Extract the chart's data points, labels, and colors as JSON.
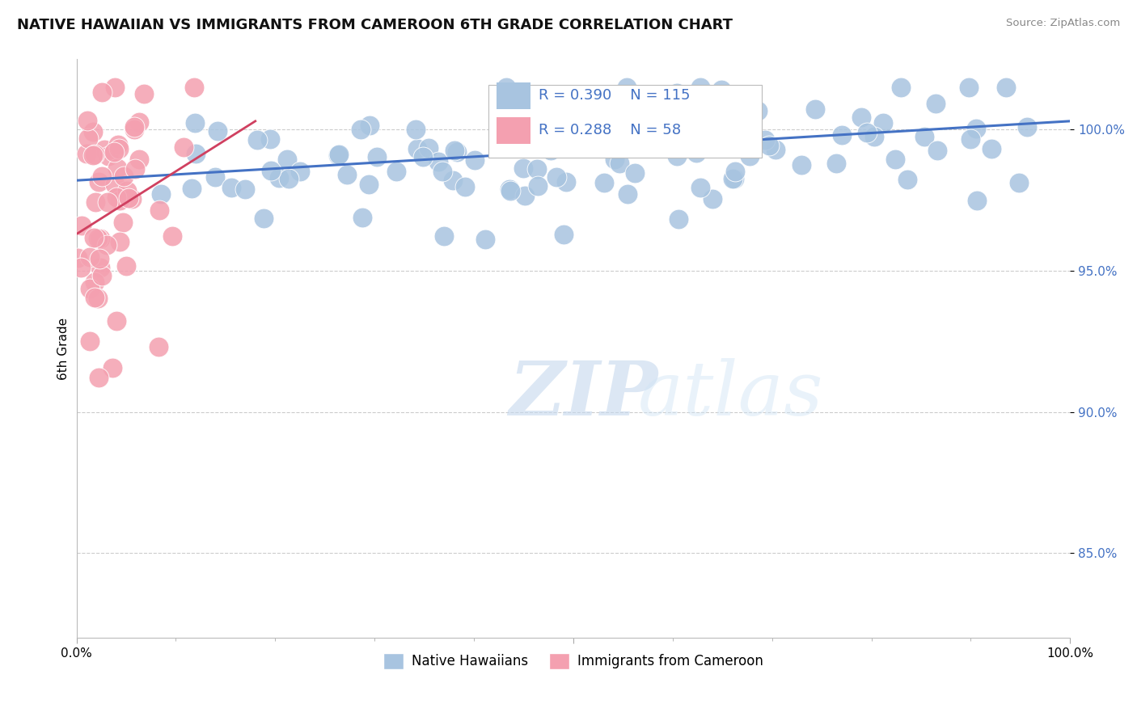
{
  "title": "NATIVE HAWAIIAN VS IMMIGRANTS FROM CAMEROON 6TH GRADE CORRELATION CHART",
  "source": "Source: ZipAtlas.com",
  "ylabel": "6th Grade",
  "xlim": [
    0.0,
    1.0
  ],
  "ylim": [
    0.82,
    1.025
  ],
  "x_tick_labels": [
    "0.0%",
    "100.0%"
  ],
  "y_tick_vals": [
    0.85,
    0.9,
    0.95,
    1.0
  ],
  "y_tick_labels": [
    "85.0%",
    "90.0%",
    "95.0%",
    "100.0%"
  ],
  "legend_entries": [
    "Native Hawaiians",
    "Immigrants from Cameroon"
  ],
  "R_blue": 0.39,
  "N_blue": 115,
  "R_pink": 0.288,
  "N_pink": 58,
  "blue_color": "#a8c4e0",
  "pink_color": "#f4a0b0",
  "blue_line_color": "#4472c4",
  "pink_line_color": "#d04060",
  "legend_text_color": "#4472c4",
  "watermark_zip": "ZIP",
  "watermark_atlas": "atlas",
  "background_color": "#ffffff",
  "title_fontsize": 13,
  "seed": 42,
  "blue_scatter_n": 115,
  "pink_scatter_n": 58,
  "blue_line_start_y": 0.982,
  "blue_line_end_y": 1.003,
  "pink_line_start_x": 0.0,
  "pink_line_start_y": 0.963,
  "pink_line_end_x": 0.18,
  "pink_line_end_y": 1.003
}
